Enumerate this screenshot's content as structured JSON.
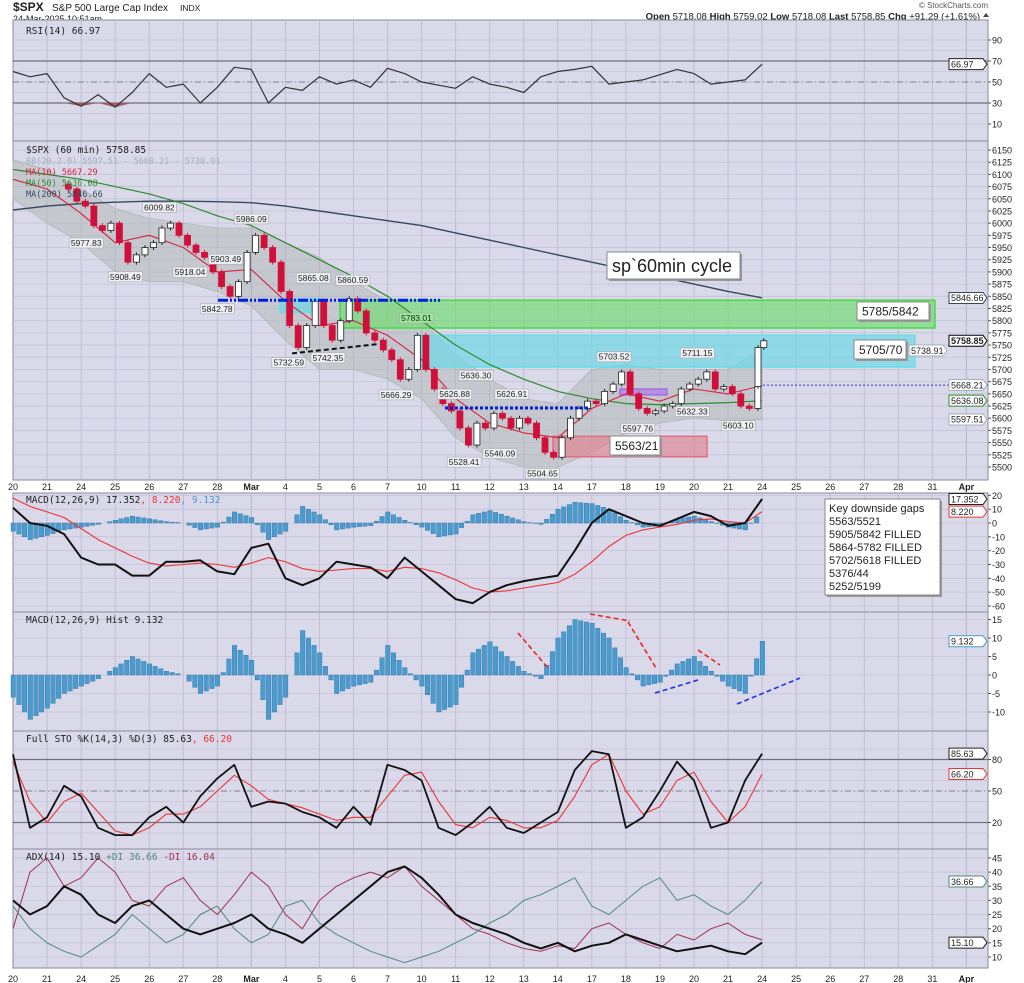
{
  "header": {
    "symbol": "$SPX",
    "name": "S&P 500 Large Cap Index",
    "exchange": "INDX",
    "datetime": "24-Mar-2025 10:51am",
    "copyright": "© StockCharts.com",
    "open_label": "Open",
    "open": "5718.08",
    "high_label": "High",
    "high": "5759.02",
    "low_label": "Low",
    "low": "5718.08",
    "last_label": "Last",
    "last": "5758.85",
    "chg_label": "Chg",
    "chg": "+91.29 (+1.61%)"
  },
  "x_axis": {
    "ticks": [
      "20",
      "21",
      "24",
      "25",
      "26",
      "27",
      "28",
      "Mar",
      "4",
      "5",
      "6",
      "7",
      "10",
      "11",
      "12",
      "13",
      "14",
      "17",
      "18",
      "19",
      "20",
      "21",
      "24",
      "25",
      "26",
      "27",
      "28",
      "31",
      "Apr"
    ]
  },
  "colors": {
    "panel_bg": "#dad9ea",
    "up": "#ffffff",
    "down": "#d0103a",
    "ma10": "#d9213f",
    "ma50": "#2e8b2e",
    "ma200": "#34495e",
    "macd_hist": "#4a9bd0",
    "signal": "#ee3333"
  },
  "chart_data": [
    {
      "type": "line",
      "legend": "RSI(14) 66.97",
      "yticks": [
        90,
        70,
        50,
        30,
        10
      ],
      "ylim": [
        0,
        100
      ],
      "series": [
        {
          "name": "RSI(14)",
          "values": [
            60,
            55,
            58,
            35,
            27,
            38,
            26,
            40,
            58,
            45,
            48,
            30,
            45,
            64,
            62,
            30,
            45,
            42,
            55,
            48,
            52,
            45,
            63,
            58,
            50,
            47,
            44,
            55,
            48,
            45,
            40,
            55,
            60,
            62,
            65,
            48,
            50,
            52,
            57,
            62,
            58,
            48,
            50,
            52,
            66.97
          ]
        }
      ],
      "badges": [
        {
          "value": 66.97,
          "label": "66.97",
          "color": "#222222"
        }
      ]
    },
    {
      "type": "candlestick",
      "legend": "$SPX (60 min) 5758.85",
      "legend_bb": "BB(20,2.0) 5597.51 - 5668.21 - 5738.91",
      "legend_ma10": "MA(10) 5667.29",
      "legend_ma50": "MA(50) 5636.08",
      "legend_ma200": "MA(200) 5846.66",
      "yticks": [
        6150,
        6125,
        6100,
        6075,
        6050,
        6025,
        6000,
        5975,
        5950,
        5925,
        5900,
        5875,
        5850,
        5825,
        5800,
        5775,
        5750,
        5725,
        5700,
        5675,
        5650,
        5625,
        5600,
        5575,
        5550,
        5525,
        5500
      ],
      "ylim": [
        5480,
        6170
      ],
      "closes": [
        {
          "date": "21",
          "values": [
            6070,
            6045
          ]
        },
        {
          "date": "24",
          "values": [
            6035,
            5995,
            5985,
            6000
          ]
        },
        {
          "date": "25",
          "values": [
            5960,
            5920,
            5935,
            5950
          ]
        },
        {
          "date": "26",
          "values": [
            5960,
            5990,
            6000,
            5975
          ]
        },
        {
          "date": "27",
          "values": [
            5955,
            5940,
            5930,
            5900
          ]
        },
        {
          "date": "28",
          "values": [
            5870,
            5850,
            5880,
            5940
          ]
        },
        {
          "date": "Mar 3",
          "values": [
            5975,
            5950,
            5920,
            5860
          ]
        },
        {
          "date": "4",
          "values": [
            5790,
            5745,
            5790,
            5840
          ]
        },
        {
          "date": "5",
          "values": [
            5790,
            5760,
            5800,
            5845
          ]
        },
        {
          "date": "6",
          "values": [
            5820,
            5775,
            5760,
            5740
          ]
        },
        {
          "date": "7",
          "values": [
            5720,
            5680,
            5700,
            5770
          ]
        },
        {
          "date": "10",
          "values": [
            5700,
            5660,
            5630,
            5615
          ]
        },
        {
          "date": "11",
          "values": [
            5580,
            5545,
            5590,
            5580
          ]
        },
        {
          "date": "12",
          "values": [
            5610,
            5600,
            5580,
            5600
          ]
        },
        {
          "date": "13",
          "values": [
            5590,
            5560,
            5530,
            5520
          ]
        },
        {
          "date": "14",
          "values": [
            5560,
            5600,
            5620,
            5635
          ]
        },
        {
          "date": "17",
          "values": [
            5630,
            5655,
            5670,
            5695
          ]
        },
        {
          "date": "18",
          "values": [
            5650,
            5620,
            5610,
            5615
          ]
        },
        {
          "date": "19",
          "values": [
            5625,
            5630,
            5660,
            5670
          ]
        },
        {
          "date": "20",
          "values": [
            5680,
            5695,
            5660,
            5665
          ]
        },
        {
          "date": "21",
          "values": [
            5650,
            5625,
            5620,
            5665
          ]
        },
        {
          "date": "24",
          "values": [
            5745,
            5758.85
          ]
        }
      ],
      "ma200": [
        6027,
        6035,
        6040,
        6043,
        6045,
        6045,
        6044,
        6042,
        6035,
        6025,
        6015,
        6005,
        5995,
        5980,
        5965,
        5950,
        5935,
        5920,
        5905,
        5890,
        5875,
        5860,
        5847
      ],
      "ma50": [
        6110,
        6100,
        6090,
        6075,
        6060,
        6040,
        6015,
        5995,
        5960,
        5925,
        5890,
        5850,
        5800,
        5750,
        5710,
        5680,
        5655,
        5640,
        5630,
        5628,
        5630,
        5632,
        5636
      ],
      "ma10": [
        6090,
        6070,
        6020,
        5960,
        5975,
        5950,
        5900,
        5905,
        5840,
        5790,
        5800,
        5770,
        5720,
        5640,
        5590,
        5570,
        5560,
        5620,
        5650,
        5635,
        5660,
        5650,
        5667
      ],
      "bb_upper": [
        6130,
        6110,
        6070,
        6030,
        6010,
        6000,
        5990,
        5990,
        5960,
        5930,
        5880,
        5840,
        5800,
        5730,
        5680,
        5640,
        5630,
        5700,
        5710,
        5700,
        5700,
        5700,
        5739
      ],
      "bb_lower": [
        6050,
        6000,
        5960,
        5900,
        5880,
        5880,
        5860,
        5830,
        5760,
        5700,
        5700,
        5680,
        5640,
        5560,
        5520,
        5500,
        5500,
        5530,
        5570,
        5590,
        5600,
        5595,
        5597
      ],
      "price_labels": [
        "5977.83",
        "5908.49",
        "6009.82",
        "5918.04",
        "5842.78",
        "5903.49",
        "5986.09",
        "5732.59",
        "5865.08",
        "5742.35",
        "5860.59",
        "5666.29",
        "5783.01",
        "5626.88",
        "5636.30",
        "5528.41",
        "5546.09",
        "5626.91",
        "5504.65",
        "5703.52",
        "5597.76",
        "5711.15",
        "5632.33",
        "5603.10"
      ],
      "annotations": {
        "cycle_label": "sp`60min cycle",
        "zone_green": "5785/5842",
        "zone_cyan": "5705/70",
        "zone_red": "5563/21",
        "gaps_title": "Key downside gaps",
        "gaps": [
          "5563/5521",
          "5905/5842 FILLED",
          "5864-5782 FILLED",
          "5702/5618 FILLED",
          "5376/44",
          "5252/5199"
        ]
      },
      "badges": [
        {
          "value": 5846.66,
          "label": "5846.66",
          "color": "#34495e"
        },
        {
          "value": 5758.85,
          "label": "5758.85",
          "color": "#000000"
        },
        {
          "value": 5738.91,
          "label": "5738.91",
          "color": "#9fb4bb"
        },
        {
          "value": 5668.21,
          "label": "5668.21",
          "color": "#9fb4bb"
        },
        {
          "value": 5636.08,
          "label": "5636.08",
          "color": "#2e8b2e"
        },
        {
          "value": 5597.51,
          "label": "5597.51",
          "color": "#9fb4bb"
        }
      ]
    },
    {
      "type": "line",
      "legend": "MACD(12,26,9) 17.352",
      "legend_signal": ", 8.220",
      "legend_hist": ", 9.132",
      "yticks": [
        20,
        10,
        0,
        -10,
        -20,
        -30,
        -40,
        -50,
        -60
      ],
      "series": [
        {
          "name": "MACD(12,26,9)",
          "values": [
            11,
            0,
            -2,
            -8,
            -25,
            -30,
            -30,
            -38,
            -38,
            -28,
            -28,
            -27,
            -35,
            -37,
            -18,
            -15,
            -40,
            -45,
            -40,
            -28,
            -30,
            -32,
            -40,
            -25,
            -35,
            -45,
            -55,
            -58,
            -50,
            -45,
            -42,
            -40,
            -38,
            -20,
            0,
            10,
            5,
            0,
            -2,
            3,
            8,
            5,
            -2,
            0,
            17.352
          ]
        },
        {
          "name": "signal",
          "values": [
            18,
            12,
            8,
            4,
            -4,
            -12,
            -18,
            -24,
            -29,
            -31,
            -30,
            -29,
            -30,
            -32,
            -29,
            -25,
            -28,
            -33,
            -35,
            -34,
            -33,
            -33,
            -35,
            -32,
            -33,
            -36,
            -41,
            -47,
            -50,
            -49,
            -47,
            -45,
            -43,
            -37,
            -28,
            -17,
            -9,
            -5,
            -3,
            -1,
            2,
            3,
            1,
            0,
            8.22
          ]
        }
      ],
      "badges": [
        {
          "value": 17.352,
          "label": "17.352",
          "color": "#222222"
        },
        {
          "value": 8.22,
          "label": "8.220",
          "color": "#ee3333"
        }
      ]
    },
    {
      "type": "bar",
      "legend": "MACD(12,26,9) Hist 9.132",
      "yticks": [
        15,
        10,
        5,
        0,
        -5,
        -10
      ],
      "values": [
        -6,
        -12,
        -9,
        -5,
        -3,
        -1,
        2,
        5,
        3,
        1,
        0,
        -5,
        -3,
        8,
        4,
        -12,
        -6,
        12,
        6,
        -5,
        -3,
        -2,
        8,
        2,
        -3,
        -10,
        -8,
        6,
        9,
        5,
        1,
        -1,
        10,
        15,
        14,
        10,
        2,
        -3,
        -2,
        3,
        5,
        1,
        -3,
        -5,
        9.132
      ],
      "badges": [
        {
          "value": 9.132,
          "label": "9.132",
          "color": "#4a9bd0"
        }
      ]
    },
    {
      "type": "line",
      "legend": "Full STO %K(14,3) %D(3) 85.63",
      "legend_d": ", 66.20",
      "yticks": [
        80,
        50,
        20
      ],
      "ylim": [
        0,
        100
      ],
      "series": [
        {
          "name": "%K",
          "values": [
            85,
            15,
            25,
            55,
            45,
            15,
            8,
            8,
            25,
            35,
            20,
            45,
            62,
            75,
            35,
            40,
            38,
            30,
            25,
            15,
            35,
            18,
            75,
            70,
            60,
            15,
            8,
            20,
            35,
            15,
            10,
            20,
            30,
            70,
            88,
            85,
            15,
            25,
            50,
            78,
            60,
            15,
            20,
            60,
            85.63
          ]
        },
        {
          "name": "%D",
          "values": [
            78,
            40,
            20,
            40,
            48,
            30,
            12,
            8,
            15,
            28,
            28,
            35,
            50,
            65,
            55,
            42,
            38,
            34,
            28,
            22,
            25,
            25,
            45,
            65,
            68,
            40,
            18,
            15,
            25,
            22,
            15,
            15,
            22,
            45,
            75,
            85,
            50,
            28,
            35,
            60,
            68,
            40,
            20,
            35,
            66.2
          ]
        }
      ],
      "badges": [
        {
          "value": 85.63,
          "label": "85.63",
          "color": "#222222"
        },
        {
          "value": 66.2,
          "label": "66.20",
          "color": "#ee3333"
        }
      ]
    },
    {
      "type": "line",
      "legend": "ADX(14) 15.10",
      "legend_pdi": "+DI 36.66",
      "legend_mdi": "-DI 16.04",
      "yticks": [
        45,
        40,
        35,
        30,
        25,
        20,
        15,
        10
      ],
      "series": [
        {
          "name": "ADX(14)",
          "values": [
            30,
            25,
            28,
            35,
            32,
            25,
            22,
            28,
            30,
            25,
            20,
            18,
            20,
            22,
            25,
            20,
            18,
            15,
            20,
            25,
            30,
            35,
            40,
            42,
            38,
            32,
            25,
            22,
            20,
            18,
            15,
            13,
            15,
            12,
            14,
            15,
            18,
            16,
            14,
            12,
            13,
            14,
            12,
            11,
            15.1
          ]
        },
        {
          "name": "+DI",
          "values": [
            28,
            20,
            15,
            12,
            10,
            14,
            18,
            25,
            20,
            15,
            18,
            25,
            28,
            20,
            15,
            18,
            28,
            30,
            22,
            18,
            15,
            12,
            10,
            8,
            10,
            12,
            15,
            18,
            22,
            25,
            30,
            32,
            35,
            38,
            28,
            25,
            30,
            35,
            38,
            30,
            32,
            28,
            25,
            30,
            36.66
          ]
        },
        {
          "name": "-DI",
          "values": [
            20,
            40,
            45,
            35,
            38,
            45,
            40,
            30,
            28,
            35,
            38,
            30,
            25,
            32,
            40,
            35,
            25,
            20,
            30,
            35,
            38,
            40,
            38,
            42,
            35,
            30,
            25,
            20,
            18,
            15,
            13,
            12,
            14,
            13,
            20,
            22,
            18,
            15,
            13,
            18,
            16,
            20,
            22,
            18,
            16.04
          ]
        }
      ],
      "badges": [
        {
          "value": 36.66,
          "label": "36.66",
          "color": "#4f8a7a"
        },
        {
          "value": 15.1,
          "label": "15.10",
          "color": "#222222"
        }
      ]
    }
  ]
}
